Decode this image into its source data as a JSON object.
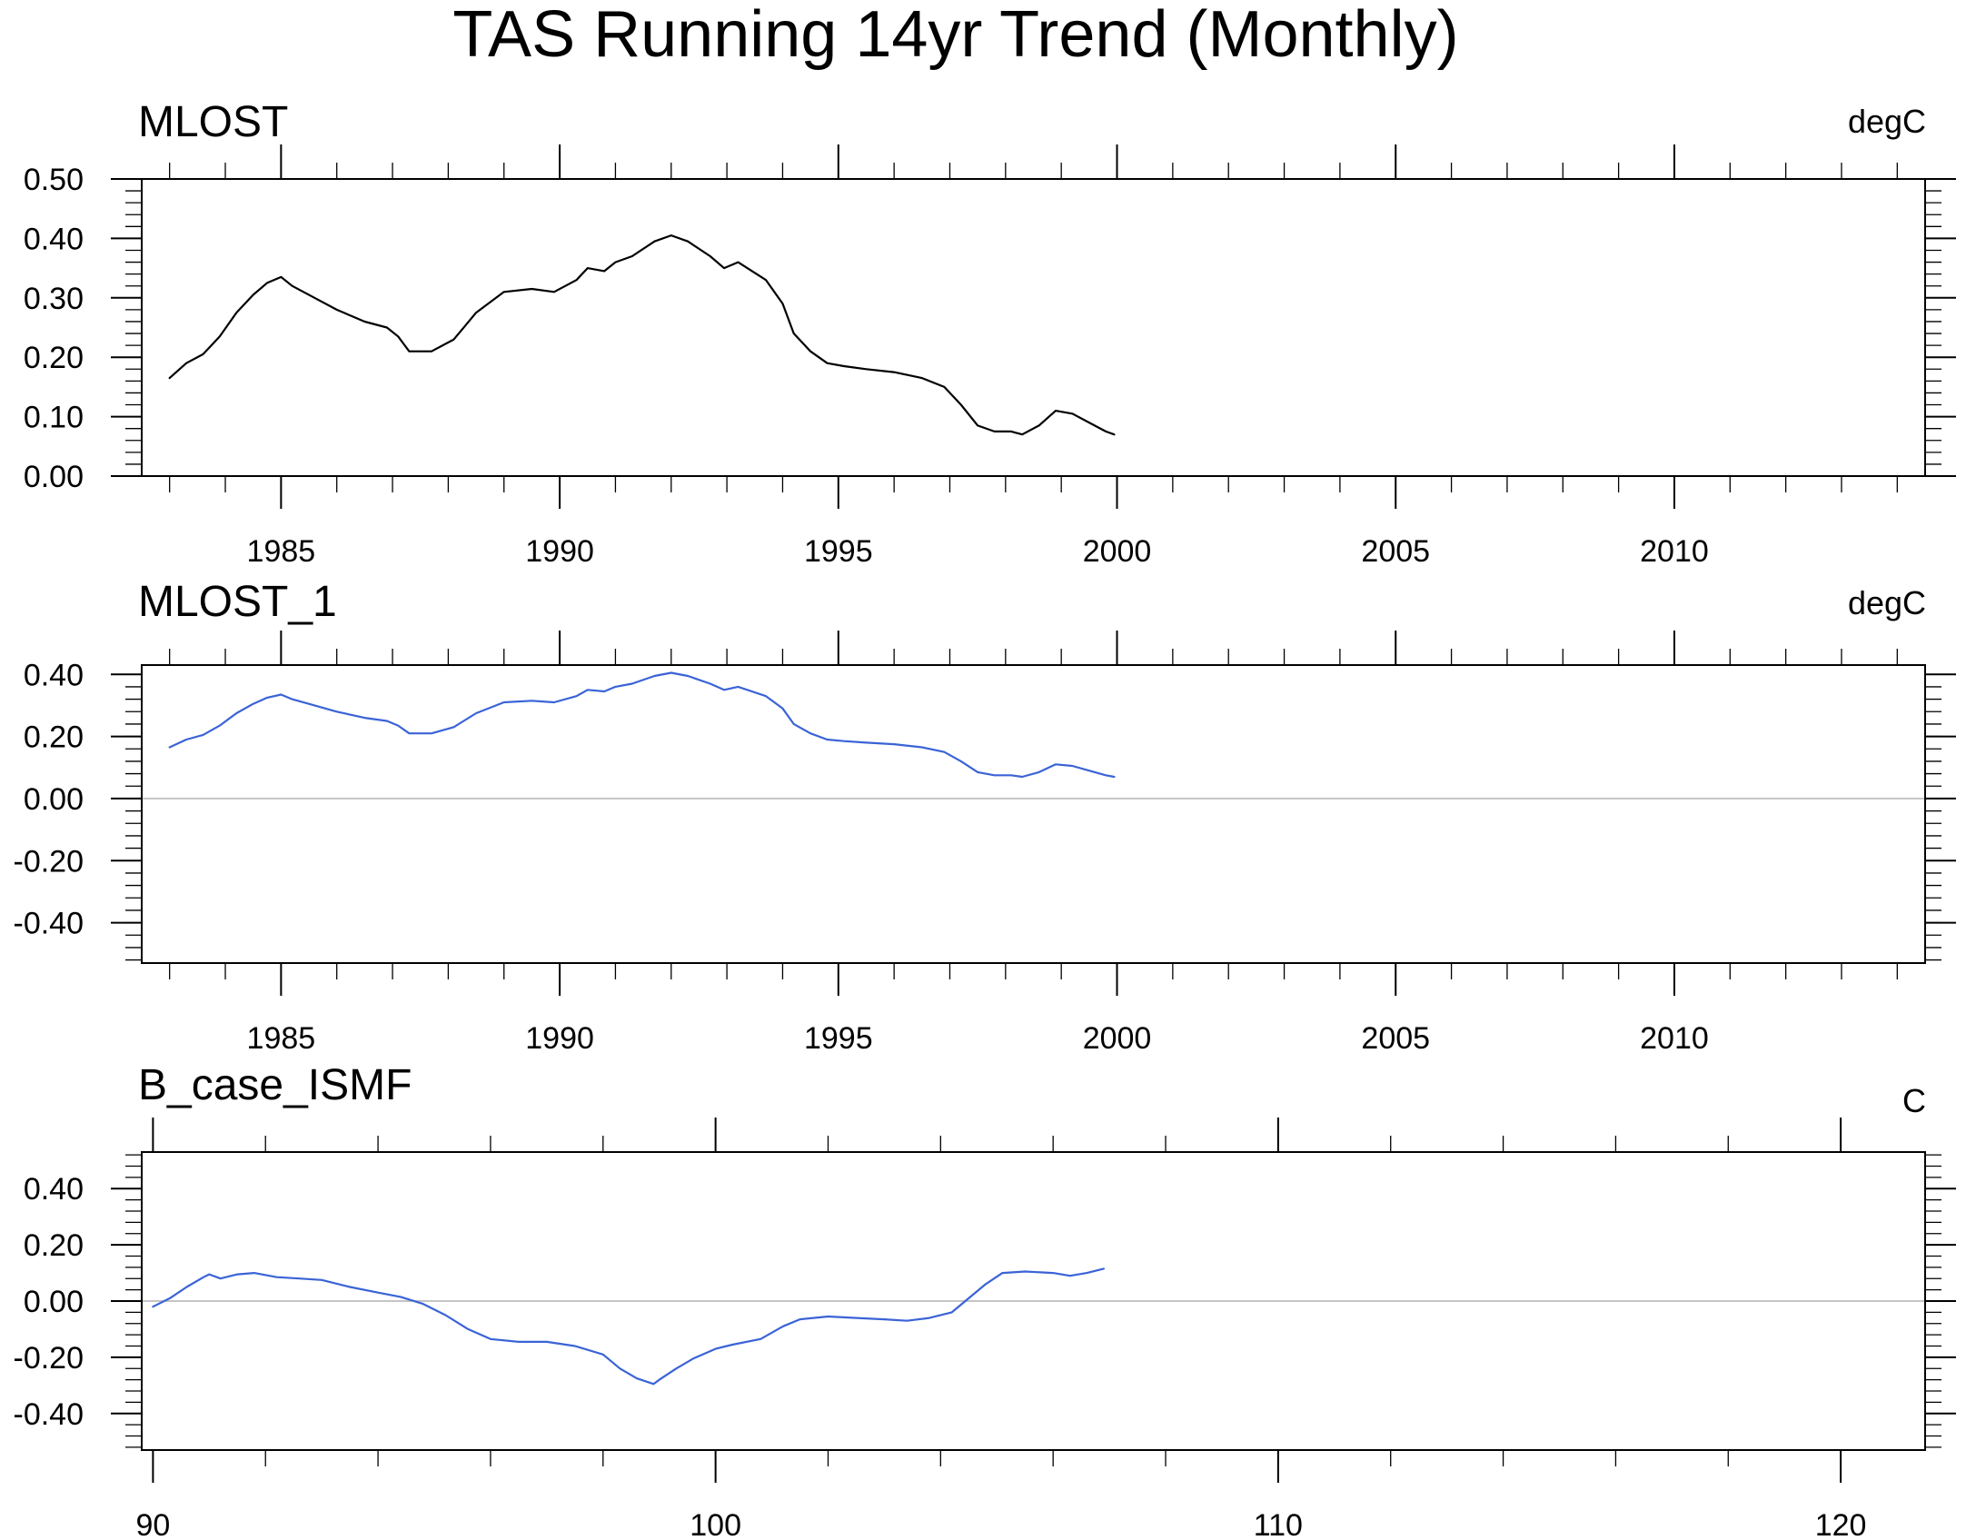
{
  "figure": {
    "title": "TAS Running 14yr Trend (Monthly)"
  },
  "chart_data": [
    {
      "type": "line",
      "title": "MLOST",
      "units": "degC",
      "xlim": [
        1982.5,
        2014.5
      ],
      "xticks": [
        1985,
        1990,
        1995,
        2000,
        2005,
        2010
      ],
      "xtick_labels": [
        "1985",
        "1990",
        "1995",
        "2000",
        "2005",
        "2010"
      ],
      "ylim": [
        0.0,
        0.5
      ],
      "yticks": [
        0.0,
        0.1,
        0.2,
        0.3,
        0.4,
        0.5
      ],
      "ytick_labels": [
        "0.00",
        "0.10",
        "0.20",
        "0.30",
        "0.40",
        "0.50"
      ],
      "zero_line": false,
      "grid": false,
      "series": [
        {
          "color": "#000000",
          "x": [
            1983.0,
            1983.3,
            1983.6,
            1983.9,
            1984.2,
            1984.5,
            1984.75,
            1985.0,
            1985.2,
            1985.6,
            1986.0,
            1986.5,
            1986.9,
            1987.1,
            1987.3,
            1987.7,
            1988.1,
            1988.5,
            1989.0,
            1989.5,
            1989.9,
            1990.3,
            1990.5,
            1990.8,
            1991.0,
            1991.3,
            1991.7,
            1992.0,
            1992.3,
            1992.7,
            1992.95,
            1993.2,
            1993.7,
            1994.0,
            1994.2,
            1994.5,
            1994.8,
            1995.1,
            1995.5,
            1996.0,
            1996.5,
            1996.9,
            1997.2,
            1997.5,
            1997.8,
            1998.1,
            1998.3,
            1998.6,
            1998.9,
            1999.2,
            1999.5,
            1999.8,
            1999.95
          ],
          "y": [
            0.165,
            0.19,
            0.205,
            0.235,
            0.275,
            0.305,
            0.325,
            0.335,
            0.32,
            0.3,
            0.28,
            0.26,
            0.25,
            0.235,
            0.21,
            0.21,
            0.23,
            0.275,
            0.31,
            0.315,
            0.31,
            0.33,
            0.35,
            0.345,
            0.36,
            0.37,
            0.395,
            0.405,
            0.395,
            0.37,
            0.35,
            0.36,
            0.33,
            0.29,
            0.24,
            0.21,
            0.19,
            0.185,
            0.18,
            0.175,
            0.165,
            0.15,
            0.12,
            0.085,
            0.075,
            0.075,
            0.07,
            0.085,
            0.11,
            0.105,
            0.09,
            0.075,
            0.07
          ]
        }
      ]
    },
    {
      "type": "line",
      "title": "MLOST_1",
      "units": "degC",
      "xlim": [
        1982.5,
        2014.5
      ],
      "xticks": [
        1985,
        1990,
        1995,
        2000,
        2005,
        2010
      ],
      "xtick_labels": [
        "1985",
        "1990",
        "1995",
        "2000",
        "2005",
        "2010"
      ],
      "ylim": [
        -0.53,
        0.43
      ],
      "yticks": [
        -0.4,
        -0.2,
        0.0,
        0.2,
        0.4
      ],
      "ytick_labels": [
        "-0.40",
        "-0.20",
        "0.00",
        "0.20",
        "0.40"
      ],
      "zero_line": true,
      "grid": false,
      "series": [
        {
          "color": "#3a63d6",
          "x": [
            1983.0,
            1983.3,
            1983.6,
            1983.9,
            1984.2,
            1984.5,
            1984.75,
            1985.0,
            1985.2,
            1985.6,
            1986.0,
            1986.5,
            1986.9,
            1987.1,
            1987.3,
            1987.7,
            1988.1,
            1988.5,
            1989.0,
            1989.5,
            1989.9,
            1990.3,
            1990.5,
            1990.8,
            1991.0,
            1991.3,
            1991.7,
            1992.0,
            1992.3,
            1992.7,
            1992.95,
            1993.2,
            1993.7,
            1994.0,
            1994.2,
            1994.5,
            1994.8,
            1995.1,
            1995.5,
            1996.0,
            1996.5,
            1996.9,
            1997.2,
            1997.5,
            1997.8,
            1998.1,
            1998.3,
            1998.6,
            1998.9,
            1999.2,
            1999.5,
            1999.8,
            1999.95
          ],
          "y": [
            0.165,
            0.19,
            0.205,
            0.235,
            0.275,
            0.305,
            0.325,
            0.335,
            0.32,
            0.3,
            0.28,
            0.26,
            0.25,
            0.235,
            0.21,
            0.21,
            0.23,
            0.275,
            0.31,
            0.315,
            0.31,
            0.33,
            0.35,
            0.345,
            0.36,
            0.37,
            0.395,
            0.405,
            0.395,
            0.37,
            0.35,
            0.36,
            0.33,
            0.29,
            0.24,
            0.21,
            0.19,
            0.185,
            0.18,
            0.175,
            0.165,
            0.15,
            0.12,
            0.085,
            0.075,
            0.075,
            0.07,
            0.085,
            0.11,
            0.105,
            0.09,
            0.075,
            0.07
          ]
        }
      ]
    },
    {
      "type": "line",
      "title": "B_case_ISMF",
      "units": "C",
      "xlim": [
        89.8,
        121.5
      ],
      "xticks": [
        90,
        100,
        110,
        120
      ],
      "xtick_labels": [
        "90",
        "100",
        "110",
        "120"
      ],
      "ylim": [
        -0.53,
        0.53
      ],
      "yticks": [
        -0.4,
        -0.2,
        0.0,
        0.2,
        0.4
      ],
      "ytick_labels": [
        "-0.40",
        "-0.20",
        "0.00",
        "0.20",
        "0.40"
      ],
      "zero_line": true,
      "grid": false,
      "series": [
        {
          "color": "#3a63d6",
          "x": [
            90.0,
            90.3,
            90.6,
            90.9,
            91.0,
            91.2,
            91.5,
            91.8,
            92.2,
            92.6,
            93.0,
            93.5,
            94.0,
            94.4,
            94.8,
            95.2,
            95.6,
            96.0,
            96.5,
            97.0,
            97.5,
            98.0,
            98.3,
            98.6,
            98.9,
            99.0,
            99.3,
            99.6,
            100.0,
            100.3,
            100.8,
            101.2,
            101.5,
            102.0,
            102.5,
            103.0,
            103.4,
            103.8,
            104.2,
            104.5,
            104.8,
            105.1,
            105.5,
            106.0,
            106.3,
            106.6,
            106.9
          ],
          "y": [
            -0.02,
            0.01,
            0.05,
            0.085,
            0.095,
            0.08,
            0.095,
            0.1,
            0.085,
            0.08,
            0.075,
            0.05,
            0.03,
            0.015,
            -0.01,
            -0.05,
            -0.1,
            -0.135,
            -0.145,
            -0.145,
            -0.16,
            -0.19,
            -0.24,
            -0.275,
            -0.295,
            -0.28,
            -0.24,
            -0.205,
            -0.17,
            -0.155,
            -0.135,
            -0.09,
            -0.065,
            -0.055,
            -0.06,
            -0.065,
            -0.07,
            -0.06,
            -0.04,
            0.01,
            0.06,
            0.1,
            0.105,
            0.1,
            0.09,
            0.1,
            0.115
          ]
        }
      ]
    }
  ]
}
